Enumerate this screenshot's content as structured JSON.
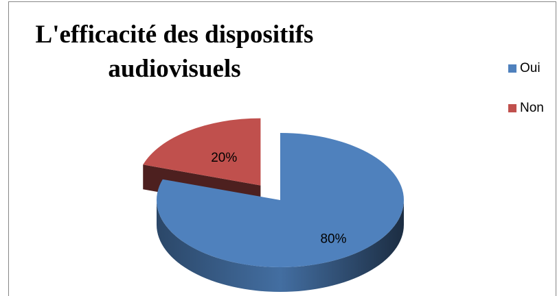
{
  "chart_data": {
    "type": "pie",
    "title": "L'efficacité des dispositifs audiovisuels",
    "categories": [
      "Oui",
      "Non"
    ],
    "values": [
      80,
      20
    ],
    "value_labels": [
      "80%",
      "20%"
    ],
    "colors": [
      "#4f81bd",
      "#c0504d"
    ],
    "legend": "right"
  }
}
